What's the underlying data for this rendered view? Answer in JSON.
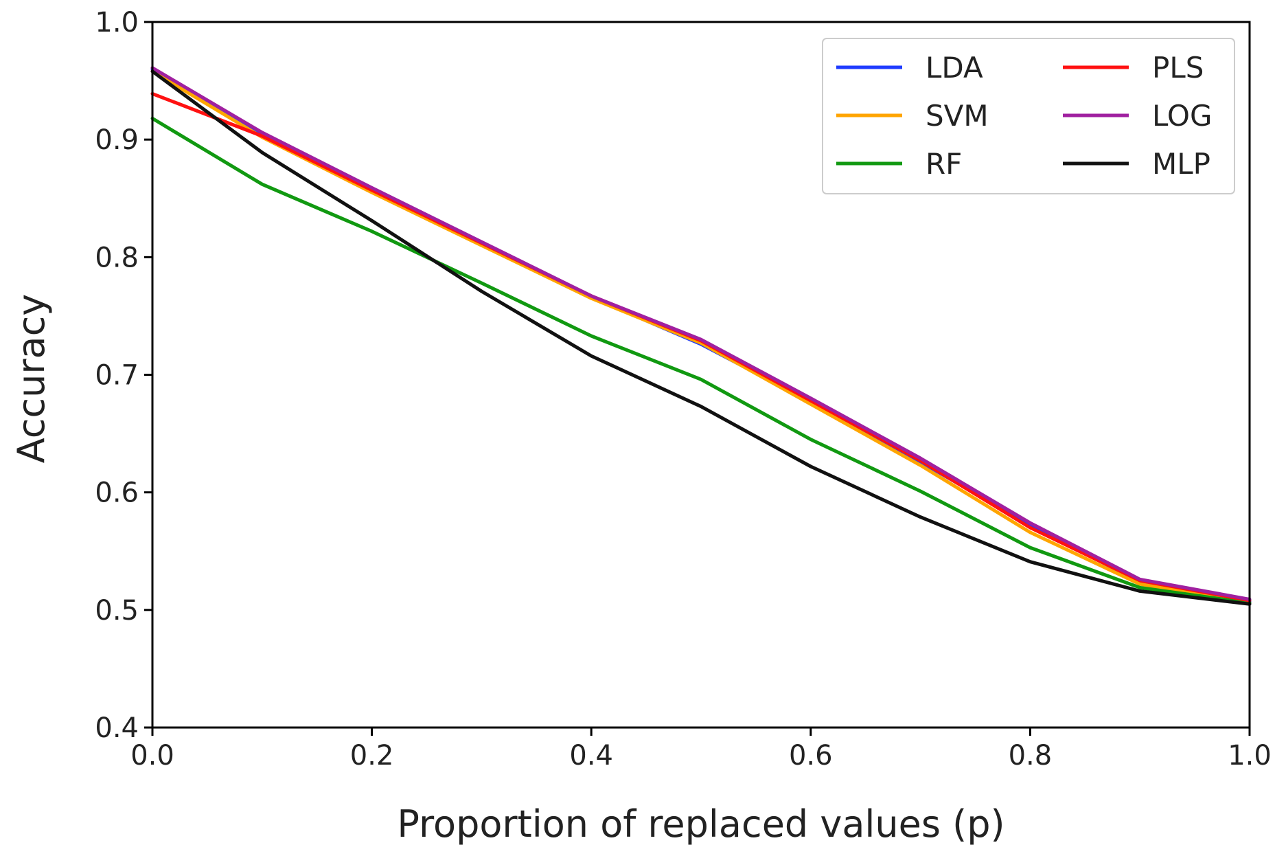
{
  "chart_data": {
    "type": "line",
    "title": "",
    "xlabel": "Proportion of replaced values (p)",
    "ylabel": "Accuracy",
    "xlim": [
      0.0,
      1.0
    ],
    "ylim": [
      0.4,
      1.0
    ],
    "xticks": [
      "0.0",
      "0.2",
      "0.4",
      "0.6",
      "0.8",
      "1.0"
    ],
    "yticks": [
      "0.4",
      "0.5",
      "0.6",
      "0.7",
      "0.8",
      "0.9",
      "1.0"
    ],
    "grid": false,
    "legend_position": "top-right",
    "legend_columns": 2,
    "x": [
      0.0,
      0.1,
      0.2,
      0.3,
      0.4,
      0.5,
      0.6,
      0.7,
      0.8,
      0.9,
      1.0
    ],
    "series": [
      {
        "name": "LDA",
        "color": "#1f3cff",
        "values": [
          0.96,
          0.905,
          0.858,
          0.812,
          0.766,
          0.726,
          0.677,
          0.626,
          0.572,
          0.524,
          0.507
        ]
      },
      {
        "name": "SVM",
        "color": "#ffa500",
        "values": [
          0.958,
          0.902,
          0.855,
          0.81,
          0.765,
          0.727,
          0.675,
          0.623,
          0.566,
          0.522,
          0.506
        ]
      },
      {
        "name": "RF",
        "color": "#119911",
        "values": [
          0.918,
          0.862,
          0.822,
          0.778,
          0.733,
          0.696,
          0.645,
          0.601,
          0.553,
          0.519,
          0.506
        ]
      },
      {
        "name": "PLS",
        "color": "#ff1111",
        "values": [
          0.939,
          0.903,
          0.857,
          0.812,
          0.767,
          0.729,
          0.678,
          0.627,
          0.57,
          0.525,
          0.508
        ]
      },
      {
        "name": "LOG",
        "color": "#a020a0",
        "values": [
          0.961,
          0.906,
          0.859,
          0.813,
          0.767,
          0.73,
          0.68,
          0.629,
          0.574,
          0.526,
          0.509
        ]
      },
      {
        "name": "MLP",
        "color": "#111111",
        "values": [
          0.958,
          0.889,
          0.831,
          0.771,
          0.716,
          0.673,
          0.622,
          0.579,
          0.541,
          0.516,
          0.505
        ]
      }
    ]
  }
}
